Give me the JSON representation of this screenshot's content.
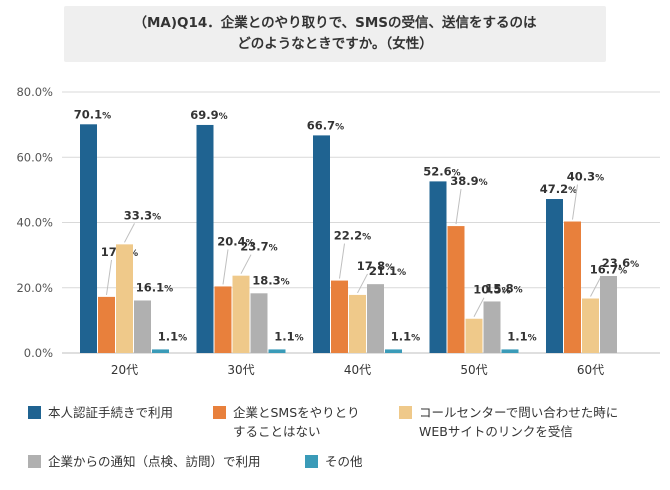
{
  "title": {
    "line1": "（MA)Q14．企業とのやり取りで、SMSの受信、送信をするのは",
    "line2": "どのようなときですか。（女性）"
  },
  "chart_data": {
    "type": "bar",
    "categories": [
      "20代",
      "30代",
      "40代",
      "50代",
      "60代"
    ],
    "ylim": [
      0,
      80
    ],
    "yticks": [
      "0.0%",
      "20.0%",
      "40.0%",
      "60.0%",
      "80.0%"
    ],
    "grid": true,
    "legend_position": "bottom",
    "series": [
      {
        "name": "本人認証手続きで利用",
        "color": "#1f6391",
        "values": [
          70.1,
          69.9,
          66.7,
          52.6,
          47.2
        ],
        "labels": [
          "70.1%",
          "69.9%",
          "66.7%",
          "52.6%",
          "47.2%"
        ]
      },
      {
        "name": "企業とSMSをやりとりすることはない",
        "color": "#e8803c",
        "values": [
          17.2,
          20.4,
          22.2,
          38.9,
          40.3
        ],
        "labels": [
          "17.2%",
          "20.4%",
          "22.2%",
          "38.9%",
          "40.3%"
        ]
      },
      {
        "name": "コールセンターで問い合わせた時にWEBサイトのリンクを受信",
        "color": "#efc98a",
        "values": [
          33.3,
          23.7,
          17.8,
          10.5,
          16.7
        ],
        "labels": [
          "33.3%",
          "23.7%",
          "17.8%",
          "10.5%",
          "16.7%"
        ]
      },
      {
        "name": "企業からの通知（点検、訪問）で利用",
        "color": "#b0b0b0",
        "values": [
          16.1,
          18.3,
          21.1,
          15.8,
          23.6
        ],
        "labels": [
          "16.1%",
          "18.3%",
          "21.1%",
          "15.8%",
          "23.6%"
        ]
      },
      {
        "name": "その他",
        "color": "#3a9bb8",
        "values": [
          1.1,
          1.1,
          1.1,
          1.1,
          0
        ],
        "labels": [
          "1.1%",
          "1.1%",
          "1.1%",
          "1.1%",
          ""
        ]
      }
    ]
  },
  "legend": [
    {
      "line1": "本人認証手続きで利用",
      "line2": ""
    },
    {
      "line1": "企業とSMSをやりとり",
      "line2": "することはない"
    },
    {
      "line1": "コールセンターで問い合わせた時に",
      "line2": "WEBサイトのリンクを受信"
    },
    {
      "line1": "企業からの通知（点検、訪問）で利用",
      "line2": ""
    },
    {
      "line1": "その他",
      "line2": ""
    }
  ]
}
